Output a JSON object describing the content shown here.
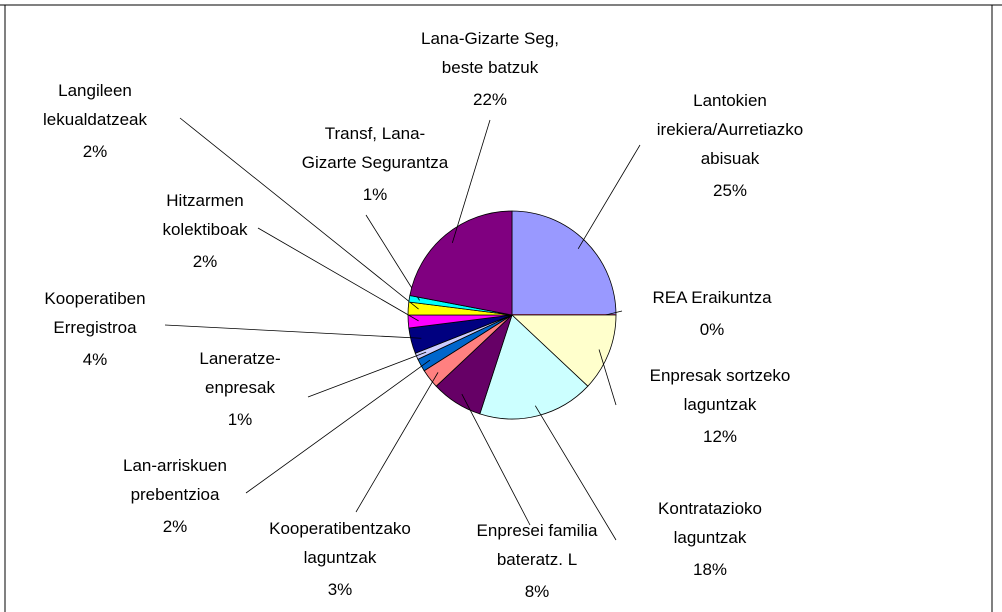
{
  "chart_data": {
    "type": "pie",
    "categories": [
      "Lantokien\nirekiera/Aurretiazko\nabisuak",
      "REA Eraikuntza",
      "Enpresak sortzeko\nlaguntzak",
      "Kontratazioko\nlaguntzak",
      "Enpresei familia\nbateratz. L",
      "Kooperatibentzako\nlaguntzak",
      "Lan-arriskuen\nprebentzioa",
      "Laneratze-\nenpresak",
      "Kooperatiben\nErregistroa",
      "Hitzarmen\nkolektiboak",
      "Langileen\nlekualdatzeak",
      "Transf, Lana-\nGizarte Segurantza",
      "Lana-Gizarte Seg,\nbeste batzuk"
    ],
    "values": [
      25,
      0,
      12,
      18,
      8,
      3,
      2,
      1,
      4,
      2,
      2,
      1,
      22
    ],
    "value_labels": [
      "25%",
      "0%",
      "12%",
      "18%",
      "8%",
      "3%",
      "2%",
      "1%",
      "4%",
      "2%",
      "2%",
      "1%",
      "22%"
    ],
    "colors": [
      "#9999FF",
      "#993366",
      "#FFFFCC",
      "#CCFFFF",
      "#660066",
      "#FF8080",
      "#0066CC",
      "#CCCCFF",
      "#000080",
      "#FF00FF",
      "#FFFF00",
      "#00FFFF",
      "#800080"
    ]
  }
}
